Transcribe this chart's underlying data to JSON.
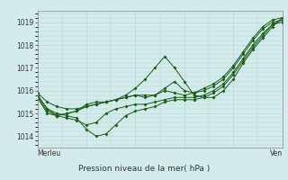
{
  "title": "Pression niveau de la mer( hPa )",
  "xlabel_left": "Merleu",
  "xlabel_right": "Ven",
  "ylim": [
    1013.5,
    1019.5
  ],
  "yticks": [
    1014,
    1015,
    1016,
    1017,
    1018,
    1019
  ],
  "bg_color": "#d4ebeb",
  "grid_color": "#b0d4d4",
  "line_color": "#1a5c1a",
  "series": [
    [
      1015.9,
      1015.5,
      1015.3,
      1015.2,
      1015.2,
      1015.3,
      1015.4,
      1015.5,
      1015.6,
      1015.8,
      1016.1,
      1016.5,
      1017.0,
      1017.5,
      1017.0,
      1016.4,
      1015.8,
      1015.7,
      1015.7,
      1016.0,
      1016.5,
      1017.2,
      1017.8,
      1018.3,
      1018.8,
      1019.2
    ],
    [
      1015.8,
      1015.2,
      1015.0,
      1014.9,
      1014.8,
      1014.3,
      1014.0,
      1014.1,
      1014.5,
      1014.9,
      1015.1,
      1015.2,
      1015.3,
      1015.5,
      1015.6,
      1015.6,
      1015.6,
      1015.7,
      1015.9,
      1016.2,
      1016.7,
      1017.3,
      1017.9,
      1018.4,
      1018.9,
      1019.1
    ],
    [
      1015.8,
      1015.2,
      1014.9,
      1014.8,
      1014.7,
      1014.5,
      1014.6,
      1015.0,
      1015.2,
      1015.3,
      1015.4,
      1015.4,
      1015.5,
      1015.6,
      1015.7,
      1015.7,
      1015.7,
      1015.8,
      1016.0,
      1016.3,
      1016.8,
      1017.4,
      1018.0,
      1018.5,
      1018.9,
      1019.0
    ],
    [
      1015.7,
      1015.1,
      1014.9,
      1015.0,
      1015.1,
      1015.3,
      1015.4,
      1015.5,
      1015.6,
      1015.7,
      1015.8,
      1015.8,
      1015.8,
      1016.0,
      1015.9,
      1015.8,
      1015.9,
      1016.0,
      1016.2,
      1016.5,
      1017.0,
      1017.6,
      1018.2,
      1018.7,
      1019.0,
      1019.1
    ],
    [
      1015.7,
      1015.0,
      1014.9,
      1015.0,
      1015.1,
      1015.4,
      1015.5,
      1015.5,
      1015.6,
      1015.7,
      1015.8,
      1015.7,
      1015.8,
      1016.1,
      1016.4,
      1016.0,
      1015.9,
      1016.1,
      1016.3,
      1016.6,
      1017.1,
      1017.7,
      1018.3,
      1018.8,
      1019.1,
      1019.2
    ]
  ]
}
